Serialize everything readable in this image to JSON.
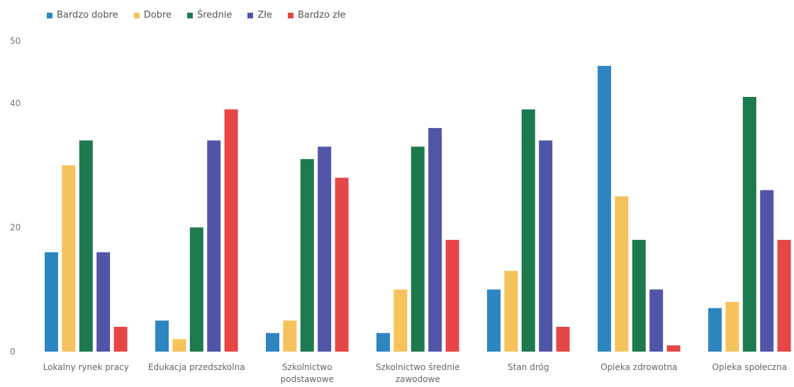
{
  "chart_data": {
    "type": "bar",
    "title": "",
    "xlabel": "",
    "ylabel": "",
    "ylim": [
      0,
      50
    ],
    "yticks": [
      0,
      20,
      40,
      50
    ],
    "grid": false,
    "legend_position": "top-left",
    "categories": [
      [
        "Lokalny rynek pracy"
      ],
      [
        "Edukacja przedszkolna"
      ],
      [
        "Szkolnictwo",
        "podstawowe"
      ],
      [
        "Szkolnictwo średnie",
        "zawodowe"
      ],
      [
        "Stan dróg"
      ],
      [
        "Opieka zdrowotna"
      ],
      [
        "Opieka społeczna"
      ]
    ],
    "series": [
      {
        "name": "Bardzo dobre",
        "color": "#2e86c1",
        "values": [
          16,
          5,
          3,
          3,
          10,
          46,
          7
        ]
      },
      {
        "name": "Dobre",
        "color": "#f6c25b",
        "values": [
          30,
          2,
          5,
          10,
          13,
          25,
          8
        ]
      },
      {
        "name": "Średnie",
        "color": "#1e7a4e",
        "values": [
          34,
          20,
          31,
          33,
          39,
          18,
          41
        ]
      },
      {
        "name": "Złe",
        "color": "#5055a8",
        "values": [
          16,
          34,
          33,
          36,
          34,
          10,
          26
        ]
      },
      {
        "name": "Bardzo złe",
        "color": "#e54646",
        "values": [
          4,
          39,
          28,
          18,
          4,
          1,
          18
        ]
      }
    ]
  }
}
